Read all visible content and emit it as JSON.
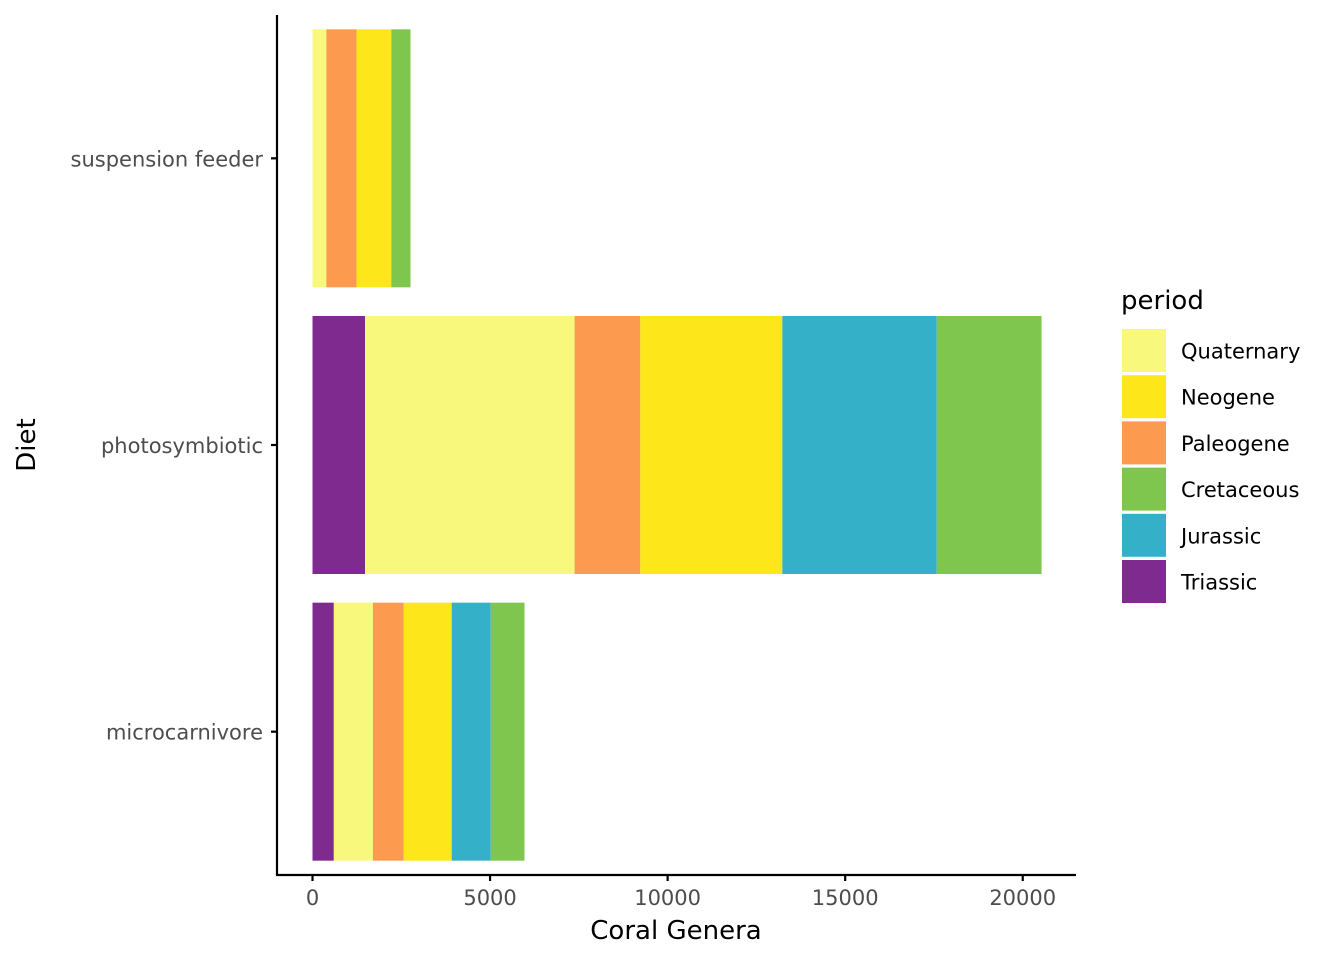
{
  "chart_data": {
    "type": "bar",
    "orientation": "horizontal",
    "stacked": true,
    "xlabel": "Coral Genera",
    "ylabel": "Diet",
    "xlim": [
      -1000,
      21500
    ],
    "x_ticks": [
      0,
      5000,
      10000,
      15000,
      20000
    ],
    "x_tick_labels": [
      "0",
      "5000",
      "10000",
      "15000",
      "20000"
    ],
    "grid": false,
    "legend_position": "right",
    "legend": {
      "title": "period",
      "entries": [
        "Quaternary",
        "Neogene",
        "Paleogene",
        "Cretaceous",
        "Jurassic",
        "Triassic"
      ]
    },
    "colors": {
      "Quaternary": "#f8f87d",
      "Neogene": "#fde619",
      "Paleogene": "#fc9a50",
      "Cretaceous": "#7fc64e",
      "Jurassic": "#34b1c8",
      "Triassic": "#7f2a8e"
    },
    "categories": [
      "suspension feeder",
      "photosymbiotic",
      "microcarnivore"
    ],
    "stack_order": {
      "suspension feeder": [
        "Quaternary",
        "Paleogene",
        "Neogene",
        "Cretaceous"
      ],
      "photosymbiotic": [
        "Triassic",
        "Quaternary",
        "Paleogene",
        "Neogene",
        "Jurassic",
        "Cretaceous"
      ],
      "microcarnivore": [
        "Triassic",
        "Quaternary",
        "Paleogene",
        "Neogene",
        "Jurassic",
        "Cretaceous"
      ]
    },
    "series": [
      {
        "name": "Quaternary",
        "values": [
          390,
          5900,
          1100
        ]
      },
      {
        "name": "Neogene",
        "values": [
          980,
          4000,
          1350
        ]
      },
      {
        "name": "Paleogene",
        "values": [
          850,
          1850,
          870
        ]
      },
      {
        "name": "Cretaceous",
        "values": [
          540,
          2950,
          950
        ]
      },
      {
        "name": "Jurassic",
        "values": [
          0,
          4350,
          1100
        ]
      },
      {
        "name": "Triassic",
        "values": [
          0,
          1480,
          600
        ]
      }
    ]
  }
}
